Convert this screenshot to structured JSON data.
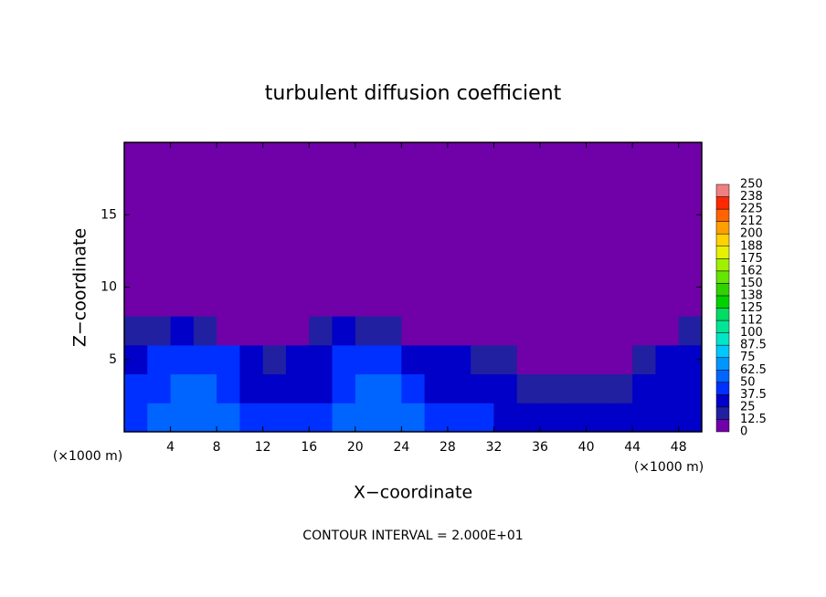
{
  "chart_data": {
    "type": "heatmap",
    "title": "turbulent diffusion coefficient",
    "x_label": "X−coordinate",
    "y_label": "Z−coordinate",
    "x_unit": "(×1000 m)",
    "x_unit_right": "(×1000 m)",
    "note": "CONTOUR INTERVAL = 2.000E+01",
    "xlim": [
      0,
      50
    ],
    "ylim": [
      0,
      20
    ],
    "xticks": [
      4,
      8,
      12,
      16,
      20,
      24,
      28,
      32,
      36,
      40,
      44,
      48
    ],
    "yticks": [
      5,
      10,
      15
    ],
    "z": [
      [
        45,
        50,
        55,
        55,
        50,
        45,
        40,
        40,
        45,
        50,
        55,
        60,
        55,
        45,
        40,
        40,
        35,
        35,
        35,
        30,
        25,
        30,
        30,
        30,
        30
      ],
      [
        40,
        45,
        50,
        50,
        45,
        35,
        30,
        30,
        35,
        45,
        50,
        50,
        40,
        35,
        30,
        30,
        25,
        20,
        20,
        15,
        15,
        20,
        25,
        25,
        30
      ],
      [
        35,
        40,
        45,
        45,
        40,
        30,
        20,
        30,
        35,
        40,
        45,
        40,
        30,
        30,
        25,
        20,
        15,
        10,
        10,
        5,
        5,
        10,
        20,
        25,
        35
      ],
      [
        15,
        20,
        25,
        20,
        10,
        5,
        0,
        10,
        20,
        25,
        20,
        15,
        10,
        5,
        0,
        0,
        0,
        0,
        0,
        0,
        0,
        0,
        0,
        5,
        15
      ],
      [
        0,
        0,
        0,
        0,
        0,
        0,
        0,
        0,
        0,
        0,
        0,
        0,
        0,
        0,
        0,
        0,
        0,
        0,
        0,
        0,
        0,
        0,
        0,
        0,
        0
      ],
      [
        0,
        0,
        0,
        0,
        0,
        0,
        0,
        0,
        0,
        0,
        0,
        0,
        0,
        0,
        0,
        0,
        0,
        0,
        0,
        0,
        0,
        0,
        0,
        0,
        0
      ],
      [
        0,
        0,
        0,
        0,
        0,
        0,
        0,
        0,
        0,
        0,
        0,
        0,
        0,
        0,
        0,
        0,
        0,
        0,
        0,
        0,
        0,
        0,
        0,
        0,
        0
      ],
      [
        0,
        0,
        0,
        0,
        0,
        0,
        0,
        0,
        0,
        0,
        0,
        0,
        0,
        0,
        0,
        0,
        0,
        0,
        0,
        0,
        0,
        0,
        0,
        0,
        0
      ],
      [
        0,
        0,
        0,
        0,
        0,
        0,
        0,
        0,
        0,
        0,
        0,
        0,
        0,
        0,
        0,
        0,
        0,
        0,
        0,
        0,
        0,
        0,
        0,
        0,
        0
      ],
      [
        0,
        0,
        0,
        0,
        0,
        0,
        0,
        0,
        0,
        0,
        0,
        0,
        0,
        0,
        0,
        0,
        0,
        0,
        0,
        0,
        0,
        0,
        0,
        0,
        0
      ]
    ],
    "levels": [
      0,
      12.5,
      25,
      37.5,
      50,
      62.5,
      75,
      87.5,
      100,
      {
        "value": 112.5,
        "label": "112"
      },
      125,
      {
        "value": 137.5,
        "label": "138"
      },
      150,
      {
        "value": 162.5,
        "label": "162"
      },
      175,
      {
        "value": 187.5,
        "label": "188"
      },
      200,
      {
        "value": 212.5,
        "label": "212"
      },
      225,
      {
        "value": 237.5,
        "label": "238"
      },
      250
    ],
    "colors": [
      "#7000a8",
      "#2020a0",
      "#0000c8",
      "#0030ff",
      "#0064ff",
      "#0096ff",
      "#00c8ff",
      "#00e6c8",
      "#00e696",
      "#00dc64",
      "#00d200",
      "#32d200",
      "#64e600",
      "#a0f000",
      "#e6f000",
      "#ffd200",
      "#ffa000",
      "#ff6400",
      "#ff2800",
      "#f08080"
    ]
  }
}
